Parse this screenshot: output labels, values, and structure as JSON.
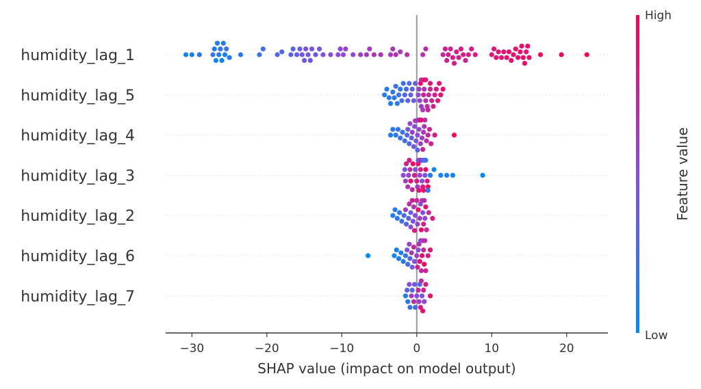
{
  "chart_data": {
    "type": "scatter",
    "subtype": "shap-beeswarm",
    "xlabel": "SHAP value (impact on model output)",
    "xlim": [
      -33.5,
      25.5
    ],
    "xticks": [
      -30,
      -20,
      -10,
      0,
      10,
      20
    ],
    "xtick_labels": [
      "−30",
      "−20",
      "−10",
      "0",
      "10",
      "20"
    ],
    "colorbar": {
      "label": "Feature value",
      "high_label": "High",
      "low_label": "Low",
      "high_color": "#ff0052",
      "low_color": "#008bfb"
    },
    "grid": false,
    "legend": "right",
    "features": [
      {
        "name": "humidity_lag_1",
        "points": [
          [
            -30.8,
            0.05
          ],
          [
            -30.0,
            0.1
          ],
          [
            -29.0,
            0.15
          ],
          [
            -27.2,
            0.2
          ],
          [
            -27.0,
            0.1
          ],
          [
            -26.8,
            0.05
          ],
          [
            -26.6,
            0.15
          ],
          [
            -26.4,
            0.1
          ],
          [
            -26.2,
            0.2
          ],
          [
            -26.0,
            0.05
          ],
          [
            -25.8,
            0.15
          ],
          [
            -25.6,
            0.1
          ],
          [
            -25.4,
            0.2
          ],
          [
            -25.0,
            0.12
          ],
          [
            -23.5,
            0.15
          ],
          [
            -21.0,
            0.2
          ],
          [
            -20.5,
            0.25
          ],
          [
            -18.6,
            0.3
          ],
          [
            -18.0,
            0.28
          ],
          [
            -16.8,
            0.33
          ],
          [
            -16.5,
            0.3
          ],
          [
            -16.0,
            0.35
          ],
          [
            -15.6,
            0.38
          ],
          [
            -15.3,
            0.42
          ],
          [
            -15.0,
            0.4
          ],
          [
            -14.8,
            0.45
          ],
          [
            -14.5,
            0.43
          ],
          [
            -14.2,
            0.42
          ],
          [
            -14.0,
            0.45
          ],
          [
            -13.5,
            0.4
          ],
          [
            -13.0,
            0.42
          ],
          [
            -12.5,
            0.45
          ],
          [
            -11.5,
            0.5
          ],
          [
            -10.5,
            0.52
          ],
          [
            -10.2,
            0.55
          ],
          [
            -9.8,
            0.54
          ],
          [
            -9.5,
            0.56
          ],
          [
            -8.5,
            0.55
          ],
          [
            -7.5,
            0.6
          ],
          [
            -6.7,
            0.62
          ],
          [
            -6.3,
            0.6
          ],
          [
            -5.7,
            0.65
          ],
          [
            -4.8,
            0.67
          ],
          [
            -3.5,
            0.62
          ],
          [
            -3.2,
            0.65
          ],
          [
            -2.8,
            0.68
          ],
          [
            -2.2,
            0.62
          ],
          [
            -1.3,
            0.7
          ],
          [
            0.8,
            0.7
          ],
          [
            1.2,
            0.72
          ],
          [
            3.5,
            0.75
          ],
          [
            3.8,
            0.8
          ],
          [
            4.0,
            0.78
          ],
          [
            4.2,
            0.8
          ],
          [
            4.5,
            0.78
          ],
          [
            4.8,
            0.82
          ],
          [
            5.0,
            0.8
          ],
          [
            5.3,
            0.82
          ],
          [
            5.6,
            0.8
          ],
          [
            5.9,
            0.82
          ],
          [
            6.2,
            0.8
          ],
          [
            6.5,
            0.8
          ],
          [
            6.9,
            0.82
          ],
          [
            7.3,
            0.84
          ],
          [
            7.8,
            0.84
          ],
          [
            10.0,
            0.86
          ],
          [
            10.3,
            0.88
          ],
          [
            10.6,
            0.86
          ],
          [
            10.9,
            0.88
          ],
          [
            11.3,
            0.87
          ],
          [
            11.6,
            0.88
          ],
          [
            12.0,
            0.88
          ],
          [
            12.3,
            0.9
          ],
          [
            12.6,
            0.9
          ],
          [
            12.9,
            0.9
          ],
          [
            13.2,
            0.9
          ],
          [
            13.5,
            0.92
          ],
          [
            13.8,
            0.92
          ],
          [
            14.0,
            0.92
          ],
          [
            14.2,
            0.94
          ],
          [
            14.4,
            0.93
          ],
          [
            14.6,
            0.92
          ],
          [
            14.8,
            0.94
          ],
          [
            15.0,
            0.92
          ],
          [
            16.5,
            0.95
          ],
          [
            19.3,
            0.96
          ],
          [
            22.7,
            0.98
          ]
        ]
      },
      {
        "name": "humidity_lag_5",
        "points": [
          [
            -4.3,
            0.1
          ],
          [
            -4.0,
            0.12
          ],
          [
            -3.7,
            0.15
          ],
          [
            -3.5,
            0.1
          ],
          [
            -3.2,
            0.18
          ],
          [
            -3.0,
            0.14
          ],
          [
            -2.8,
            0.2
          ],
          [
            -2.6,
            0.16
          ],
          [
            -2.4,
            0.22
          ],
          [
            -2.2,
            0.18
          ],
          [
            -2.0,
            0.25
          ],
          [
            -1.8,
            0.2
          ],
          [
            -1.6,
            0.28
          ],
          [
            -1.4,
            0.24
          ],
          [
            -1.2,
            0.3
          ],
          [
            -1.0,
            0.3
          ],
          [
            -0.8,
            0.35
          ],
          [
            -0.6,
            0.33
          ],
          [
            -0.4,
            0.4
          ],
          [
            -0.2,
            0.38
          ],
          [
            0.2,
            0.5
          ],
          [
            0.4,
            0.55
          ],
          [
            0.6,
            0.6
          ],
          [
            0.8,
            0.62
          ],
          [
            1.0,
            0.65
          ],
          [
            1.2,
            0.68
          ],
          [
            1.4,
            0.7
          ],
          [
            1.6,
            0.72
          ],
          [
            1.8,
            0.75
          ],
          [
            2.0,
            0.78
          ],
          [
            2.2,
            0.8
          ],
          [
            2.4,
            0.82
          ],
          [
            2.6,
            0.84
          ],
          [
            2.8,
            0.86
          ],
          [
            3.0,
            0.88
          ],
          [
            3.2,
            0.9
          ],
          [
            3.5,
            0.92
          ],
          [
            0.3,
            0.6
          ],
          [
            0.6,
            0.7
          ],
          [
            0.9,
            0.8
          ],
          [
            1.2,
            0.85
          ],
          [
            1.5,
            0.75
          ],
          [
            1.8,
            0.9
          ],
          [
            0.5,
            0.95
          ],
          [
            1.0,
            0.97
          ]
        ]
      },
      {
        "name": "humidity_lag_4",
        "points": [
          [
            -3.5,
            0.1
          ],
          [
            -3.2,
            0.12
          ],
          [
            -2.8,
            0.15
          ],
          [
            -2.5,
            0.18
          ],
          [
            -2.2,
            0.2
          ],
          [
            -1.9,
            0.22
          ],
          [
            -1.6,
            0.25
          ],
          [
            -1.3,
            0.28
          ],
          [
            -1.0,
            0.3
          ],
          [
            -0.7,
            0.35
          ],
          [
            -0.4,
            0.4
          ],
          [
            -0.1,
            0.45
          ],
          [
            0.1,
            0.5
          ],
          [
            0.3,
            0.55
          ],
          [
            0.5,
            0.6
          ],
          [
            0.7,
            0.62
          ],
          [
            0.9,
            0.65
          ],
          [
            1.1,
            0.7
          ],
          [
            1.3,
            0.72
          ],
          [
            1.5,
            0.75
          ],
          [
            1.7,
            0.78
          ],
          [
            1.9,
            0.8
          ],
          [
            2.4,
            0.82
          ],
          [
            5.0,
            0.98
          ],
          [
            0.2,
            0.7
          ],
          [
            0.4,
            0.85
          ],
          [
            0.6,
            0.9
          ],
          [
            0.8,
            0.78
          ],
          [
            1.0,
            0.68
          ],
          [
            -0.3,
            0.5
          ],
          [
            -0.6,
            0.6
          ],
          [
            -0.9,
            0.55
          ],
          [
            -1.2,
            0.4
          ],
          [
            -0.2,
            0.62
          ],
          [
            0.1,
            0.3
          ],
          [
            0.3,
            0.2
          ]
        ]
      },
      {
        "name": "humidity_lag_3",
        "points": [
          [
            -1.8,
            0.5
          ],
          [
            -1.5,
            0.6
          ],
          [
            -1.2,
            0.65
          ],
          [
            -0.9,
            0.7
          ],
          [
            -0.6,
            0.75
          ],
          [
            -0.3,
            0.8
          ],
          [
            0.0,
            0.85
          ],
          [
            0.3,
            0.88
          ],
          [
            0.6,
            0.9
          ],
          [
            0.9,
            0.92
          ],
          [
            1.2,
            0.95
          ],
          [
            1.5,
            0.97
          ],
          [
            -1.0,
            0.85
          ],
          [
            -0.5,
            0.95
          ],
          [
            0.2,
            0.9
          ],
          [
            0.8,
            0.85
          ],
          [
            1.4,
            0.88
          ],
          [
            -1.4,
            0.78
          ],
          [
            -0.8,
            0.92
          ],
          [
            0.5,
            0.8
          ],
          [
            0.2,
            0.4
          ],
          [
            0.5,
            0.35
          ],
          [
            0.8,
            0.3
          ],
          [
            1.0,
            0.25
          ],
          [
            1.2,
            0.2
          ],
          [
            1.5,
            0.15
          ],
          [
            1.8,
            0.1
          ],
          [
            2.3,
            0.05
          ],
          [
            3.2,
            0.05
          ],
          [
            4.0,
            0.1
          ],
          [
            4.8,
            0.05
          ],
          [
            8.8,
            0.02
          ],
          [
            -0.2,
            0.5
          ],
          [
            0.1,
            0.6
          ],
          [
            0.4,
            0.55
          ],
          [
            0.7,
            0.5
          ],
          [
            1.1,
            0.45
          ],
          [
            -1.6,
            0.4
          ],
          [
            -1.1,
            0.55
          ]
        ]
      },
      {
        "name": "humidity_lag_2",
        "points": [
          [
            -3.2,
            0.1
          ],
          [
            -2.9,
            0.12
          ],
          [
            -2.6,
            0.15
          ],
          [
            -2.3,
            0.18
          ],
          [
            -2.0,
            0.2
          ],
          [
            -1.7,
            0.25
          ],
          [
            -1.4,
            0.3
          ],
          [
            -1.1,
            0.35
          ],
          [
            -0.8,
            0.4
          ],
          [
            -0.5,
            0.45
          ],
          [
            -0.2,
            0.5
          ],
          [
            0.1,
            0.55
          ],
          [
            0.4,
            0.6
          ],
          [
            0.7,
            0.65
          ],
          [
            1.0,
            0.7
          ],
          [
            1.3,
            0.72
          ],
          [
            1.6,
            0.75
          ],
          [
            2.1,
            0.85
          ],
          [
            -1.5,
            0.6
          ],
          [
            -1.0,
            0.7
          ],
          [
            -0.6,
            0.8
          ],
          [
            -0.3,
            0.85
          ],
          [
            0.2,
            0.9
          ],
          [
            0.6,
            0.92
          ],
          [
            0.9,
            0.8
          ],
          [
            1.2,
            0.88
          ],
          [
            -0.8,
            0.55
          ],
          [
            -0.4,
            0.65
          ],
          [
            0.0,
            0.75
          ],
          [
            0.5,
            0.5
          ],
          [
            0.8,
            0.45
          ],
          [
            1.1,
            0.55
          ]
        ]
      },
      {
        "name": "humidity_lag_6",
        "points": [
          [
            -6.5,
            0.0
          ],
          [
            -3.0,
            0.05
          ],
          [
            -2.7,
            0.08
          ],
          [
            -2.4,
            0.1
          ],
          [
            -2.1,
            0.12
          ],
          [
            -1.8,
            0.15
          ],
          [
            -1.5,
            0.2
          ],
          [
            -1.2,
            0.25
          ],
          [
            -0.9,
            0.3
          ],
          [
            -0.6,
            0.4
          ],
          [
            -0.3,
            0.5
          ],
          [
            0.0,
            0.6
          ],
          [
            0.3,
            0.65
          ],
          [
            0.6,
            0.7
          ],
          [
            0.9,
            0.75
          ],
          [
            1.2,
            0.8
          ],
          [
            1.5,
            0.85
          ],
          [
            1.8,
            0.88
          ],
          [
            -1.0,
            0.55
          ],
          [
            -0.7,
            0.65
          ],
          [
            -0.4,
            0.75
          ],
          [
            0.1,
            0.8
          ],
          [
            0.4,
            0.9
          ],
          [
            0.7,
            0.92
          ],
          [
            1.0,
            0.95
          ],
          [
            -1.3,
            0.45
          ],
          [
            0.2,
            0.45
          ],
          [
            0.5,
            0.55
          ],
          [
            0.8,
            0.6
          ],
          [
            1.1,
            0.7
          ]
        ]
      },
      {
        "name": "humidity_lag_7",
        "points": [
          [
            -1.5,
            0.1
          ],
          [
            -1.2,
            0.15
          ],
          [
            -0.9,
            0.2
          ],
          [
            -0.6,
            0.3
          ],
          [
            -0.3,
            0.4
          ],
          [
            0.0,
            0.5
          ],
          [
            0.3,
            0.6
          ],
          [
            0.6,
            0.7
          ],
          [
            0.9,
            0.8
          ],
          [
            1.2,
            0.85
          ],
          [
            1.8,
            0.9
          ],
          [
            -1.0,
            0.5
          ],
          [
            -0.7,
            0.6
          ],
          [
            -0.4,
            0.7
          ],
          [
            0.2,
            0.75
          ],
          [
            0.5,
            0.85
          ],
          [
            0.8,
            0.9
          ],
          [
            -1.3,
            0.35
          ],
          [
            -0.2,
            0.25
          ],
          [
            0.4,
            0.3
          ],
          [
            0.7,
            0.45
          ],
          [
            1.0,
            0.55
          ]
        ]
      }
    ]
  }
}
